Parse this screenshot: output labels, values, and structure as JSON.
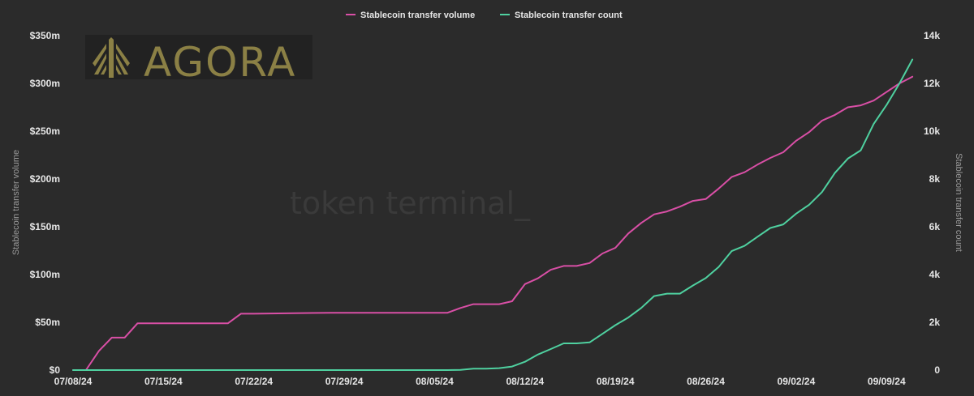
{
  "chart_data": {
    "type": "line",
    "legend_position": "top-center",
    "grid": false,
    "xlabel": "",
    "left_axis": {
      "label": "Stablecoin transfer volume",
      "range": [
        0,
        350
      ],
      "ticks": [
        0,
        50,
        100,
        150,
        200,
        250,
        300,
        350
      ],
      "tick_labels": [
        "$0",
        "$50m",
        "$100m",
        "$150m",
        "$200m",
        "$250m",
        "$300m",
        "$350m"
      ]
    },
    "right_axis": {
      "label": "Stablecoin transfer count",
      "range": [
        0,
        14000
      ],
      "ticks": [
        0,
        2000,
        4000,
        6000,
        8000,
        10000,
        12000,
        14000
      ],
      "tick_labels": [
        "0",
        "2k",
        "4k",
        "6k",
        "8k",
        "10k",
        "12k",
        "14k"
      ]
    },
    "x_ticks": [
      "07/08/24",
      "07/15/24",
      "07/22/24",
      "07/29/24",
      "08/05/24",
      "08/12/24",
      "08/19/24",
      "08/26/24",
      "09/02/24",
      "09/09/24"
    ],
    "x_start": "07/08/24",
    "x_end": "09/12/24",
    "series": [
      {
        "name": "Stablecoin transfer volume",
        "axis": "left",
        "color": "#d94fa6",
        "points": [
          [
            "07/08/24",
            0
          ],
          [
            "07/09/24",
            0
          ],
          [
            "07/10/24",
            20
          ],
          [
            "07/11/24",
            34
          ],
          [
            "07/12/24",
            34
          ],
          [
            "07/13/24",
            49
          ],
          [
            "07/14/24",
            49
          ],
          [
            "07/20/24",
            49
          ],
          [
            "07/21/24",
            59
          ],
          [
            "07/22/24",
            59
          ],
          [
            "07/28/24",
            60
          ],
          [
            "08/05/24",
            60
          ],
          [
            "08/06/24",
            60
          ],
          [
            "08/07/24",
            65
          ],
          [
            "08/08/24",
            69
          ],
          [
            "08/09/24",
            69
          ],
          [
            "08/10/24",
            69
          ],
          [
            "08/11/24",
            72
          ],
          [
            "08/12/24",
            90
          ],
          [
            "08/13/24",
            96
          ],
          [
            "08/14/24",
            105
          ],
          [
            "08/15/24",
            109
          ],
          [
            "08/16/24",
            109
          ],
          [
            "08/17/24",
            112
          ],
          [
            "08/18/24",
            122
          ],
          [
            "08/19/24",
            128
          ],
          [
            "08/20/24",
            143
          ],
          [
            "08/21/24",
            154
          ],
          [
            "08/22/24",
            163
          ],
          [
            "08/23/24",
            166
          ],
          [
            "08/24/24",
            171
          ],
          [
            "08/25/24",
            177
          ],
          [
            "08/26/24",
            179
          ],
          [
            "08/27/24",
            190
          ],
          [
            "08/28/24",
            202
          ],
          [
            "08/29/24",
            207
          ],
          [
            "08/30/24",
            215
          ],
          [
            "08/31/24",
            222
          ],
          [
            "09/01/24",
            228
          ],
          [
            "09/02/24",
            240
          ],
          [
            "09/03/24",
            249
          ],
          [
            "09/04/24",
            261
          ],
          [
            "09/05/24",
            267
          ],
          [
            "09/06/24",
            275
          ],
          [
            "09/07/24",
            277
          ],
          [
            "09/08/24",
            282
          ],
          [
            "09/09/24",
            291
          ],
          [
            "09/10/24",
            300
          ],
          [
            "09/11/24",
            307
          ]
        ]
      },
      {
        "name": "Stablecoin transfer count",
        "axis": "right",
        "color": "#4fd1a0",
        "points": [
          [
            "07/08/24",
            0
          ],
          [
            "08/06/24",
            0
          ],
          [
            "08/07/24",
            10
          ],
          [
            "08/08/24",
            60
          ],
          [
            "08/09/24",
            60
          ],
          [
            "08/10/24",
            80
          ],
          [
            "08/11/24",
            150
          ],
          [
            "08/12/24",
            350
          ],
          [
            "08/13/24",
            650
          ],
          [
            "08/14/24",
            880
          ],
          [
            "08/15/24",
            1120
          ],
          [
            "08/16/24",
            1120
          ],
          [
            "08/17/24",
            1160
          ],
          [
            "08/18/24",
            1520
          ],
          [
            "08/19/24",
            1880
          ],
          [
            "08/20/24",
            2200
          ],
          [
            "08/21/24",
            2600
          ],
          [
            "08/22/24",
            3100
          ],
          [
            "08/23/24",
            3200
          ],
          [
            "08/24/24",
            3200
          ],
          [
            "08/25/24",
            3540
          ],
          [
            "08/26/24",
            3850
          ],
          [
            "08/27/24",
            4320
          ],
          [
            "08/28/24",
            4980
          ],
          [
            "08/29/24",
            5200
          ],
          [
            "08/30/24",
            5580
          ],
          [
            "08/31/24",
            5950
          ],
          [
            "09/01/24",
            6100
          ],
          [
            "09/02/24",
            6550
          ],
          [
            "09/03/24",
            6920
          ],
          [
            "09/04/24",
            7450
          ],
          [
            "09/05/24",
            8250
          ],
          [
            "09/06/24",
            8850
          ],
          [
            "09/07/24",
            9200
          ],
          [
            "09/08/24",
            10300
          ],
          [
            "09/09/24",
            11100
          ],
          [
            "09/10/24",
            12000
          ],
          [
            "09/11/24",
            13000
          ]
        ]
      }
    ]
  },
  "watermark_text": "token terminal_",
  "logo": {
    "text": "AGORA",
    "background": "#222222",
    "color": "#8b8045"
  }
}
